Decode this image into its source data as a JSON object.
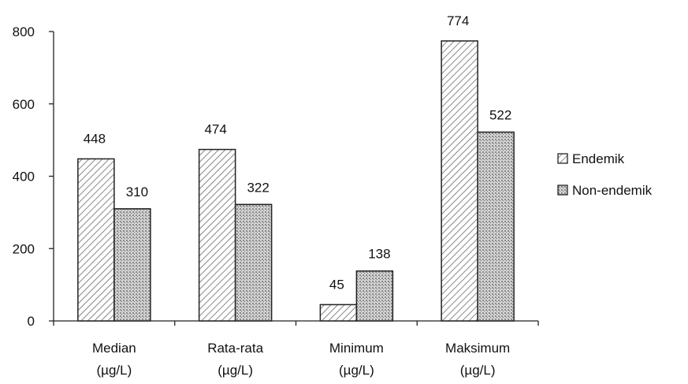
{
  "chart_data": {
    "type": "bar",
    "title": "",
    "xlabel": "",
    "ylabel": "",
    "categories": [
      [
        "Median",
        "(µg/L)"
      ],
      [
        "Rata-rata",
        "(µg/L)"
      ],
      [
        "Minimum",
        "(µg/L)"
      ],
      [
        "Maksimum",
        "(µg/L)"
      ]
    ],
    "series": [
      {
        "name": "Endemik",
        "values": [
          448,
          474,
          45,
          774
        ],
        "pattern": "diagonal-hatch"
      },
      {
        "name": "Non-endemik",
        "values": [
          310,
          322,
          138,
          522
        ],
        "pattern": "crosshatch-dots"
      }
    ],
    "ylim": [
      0,
      800
    ],
    "yticks": [
      0,
      200,
      400,
      600,
      800
    ],
    "grid": false,
    "legend_position": "right",
    "data_labels": true,
    "colors": {
      "bar_fill": "#ffffff",
      "hatch": "#555555",
      "axis": "#222222"
    }
  }
}
